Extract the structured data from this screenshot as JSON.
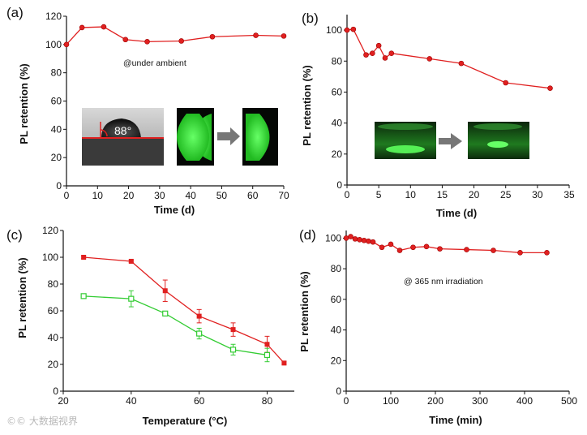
{
  "watermark": "©© 大数据视界",
  "colors": {
    "red": "#e02020",
    "green": "#33cc33",
    "inset_green": "#39e639",
    "axis": "#111111"
  },
  "chart_data": [
    {
      "panel": "(a)",
      "type": "line",
      "xlabel": "Time (d)",
      "ylabel": "PL retention (%)",
      "xlim": [
        0,
        70
      ],
      "ylim": [
        0,
        120
      ],
      "xticks": [
        0,
        10,
        20,
        30,
        40,
        50,
        60,
        70
      ],
      "yticks": [
        0,
        20,
        40,
        60,
        80,
        100,
        120
      ],
      "series": [
        {
          "name": "ambient",
          "color": "#e02020",
          "marker": "circle-filled",
          "x": [
            0,
            5,
            12,
            19,
            26,
            37,
            47,
            61,
            70
          ],
          "y": [
            100,
            112,
            112.5,
            103.5,
            102,
            102.5,
            105.5,
            106.5,
            106
          ]
        }
      ],
      "annotations": [
        "@under ambient",
        "88°"
      ]
    },
    {
      "panel": "(b)",
      "type": "line",
      "xlabel": "Time (d)",
      "ylabel": "PL retention (%)",
      "xlim": [
        0,
        35
      ],
      "ylim": [
        0,
        110
      ],
      "xticks": [
        0,
        5,
        10,
        15,
        20,
        25,
        30,
        35
      ],
      "yticks": [
        0,
        20,
        40,
        60,
        80,
        100
      ],
      "series": [
        {
          "name": "retention",
          "color": "#e02020",
          "marker": "circle-filled",
          "x": [
            0,
            1,
            3,
            4,
            5,
            6,
            7,
            13,
            18,
            25,
            32
          ],
          "y": [
            100,
            100.5,
            84,
            85,
            90,
            82,
            85,
            81.5,
            78.5,
            66,
            62.5
          ]
        }
      ],
      "annotations": []
    },
    {
      "panel": "(c)",
      "type": "line",
      "xlabel": "Temperature (°C)",
      "ylabel": "PL retention (%)",
      "xlim": [
        20,
        88
      ],
      "ylim": [
        0,
        120
      ],
      "xticks": [
        20,
        40,
        60,
        80
      ],
      "yticks": [
        0,
        20,
        40,
        60,
        80,
        100,
        120
      ],
      "series": [
        {
          "name": "red",
          "color": "#e02020",
          "marker": "square-filled",
          "x": [
            26,
            40,
            50,
            60,
            70,
            80,
            85
          ],
          "y": [
            100,
            97,
            75,
            56,
            46,
            35,
            21
          ],
          "err": [
            1,
            1,
            8,
            5,
            5,
            6,
            1
          ]
        },
        {
          "name": "green",
          "color": "#33cc33",
          "marker": "square-open",
          "x": [
            26,
            40,
            50,
            60,
            70,
            80
          ],
          "y": [
            71,
            69,
            58,
            43,
            31,
            27
          ],
          "err": [
            1,
            6,
            1,
            4,
            4,
            5
          ]
        }
      ],
      "annotations": []
    },
    {
      "panel": "(d)",
      "type": "line",
      "xlabel": "Time (min)",
      "ylabel": "PL retention (%)",
      "xlim": [
        0,
        500
      ],
      "ylim": [
        0,
        105
      ],
      "xticks": [
        0,
        100,
        200,
        300,
        400,
        500
      ],
      "yticks": [
        0,
        20,
        40,
        60,
        80,
        100
      ],
      "series": [
        {
          "name": "uv",
          "color": "#e02020",
          "marker": "circle-filled",
          "x": [
            0,
            10,
            20,
            30,
            40,
            50,
            60,
            80,
            100,
            120,
            150,
            180,
            210,
            270,
            330,
            390,
            450
          ],
          "y": [
            100,
            101,
            99.5,
            99,
            98.5,
            98,
            97.5,
            94,
            96,
            92,
            94,
            94.5,
            93,
            92.5,
            92,
            90.5,
            90.5
          ]
        }
      ],
      "annotations": [
        "@ 365 nm irradiation"
      ]
    }
  ]
}
